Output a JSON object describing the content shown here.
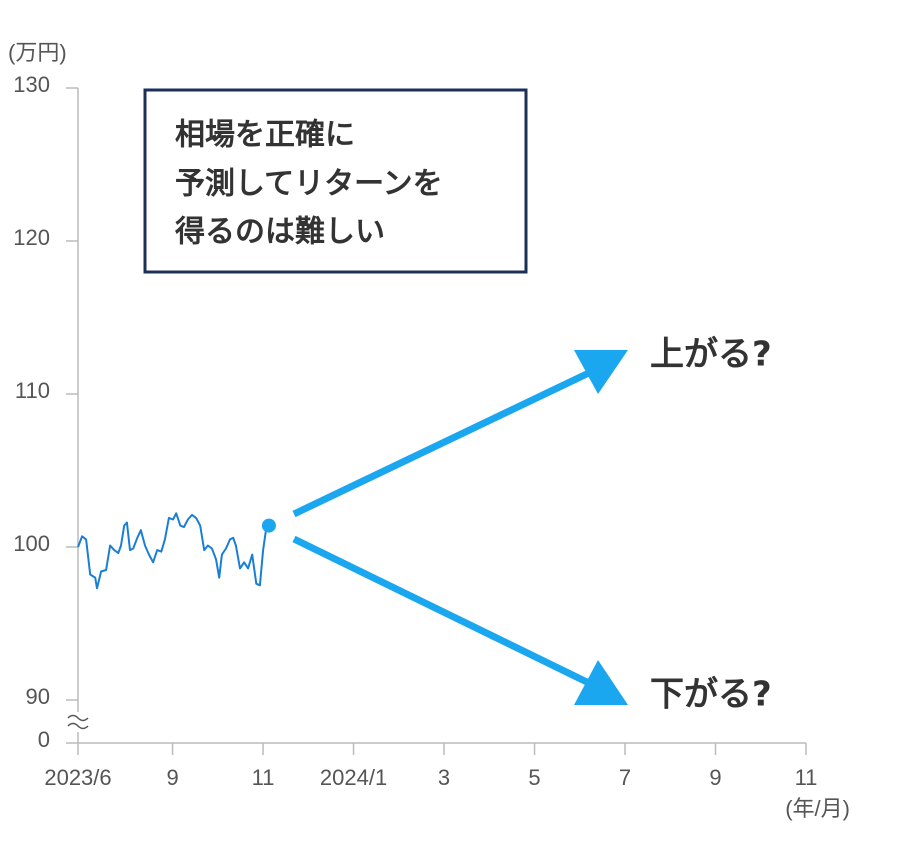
{
  "chart_data": {
    "type": "line",
    "y_unit": "(万円)",
    "x_unit": "(年/月)",
    "note_lines": [
      "相場を正確に",
      "予測してリターンを",
      "得るのは難しい"
    ],
    "up_label": "上がる?",
    "down_label": "下がる?",
    "axis_break": true,
    "ylim": [
      90,
      130
    ],
    "yticks": [
      0,
      90,
      100,
      110,
      120,
      130
    ],
    "xlim": [
      6.91,
      23
    ],
    "xticks": [
      {
        "value": 6.91,
        "label": "2023/6"
      },
      {
        "value": 9,
        "label": "9"
      },
      {
        "value": 11,
        "label": "11"
      },
      {
        "value": 13,
        "label": "2024/1"
      },
      {
        "value": 15,
        "label": "3"
      },
      {
        "value": 17,
        "label": "5"
      },
      {
        "value": 19,
        "label": "7"
      },
      {
        "value": 21,
        "label": "9"
      },
      {
        "value": 23,
        "label": "11"
      }
    ],
    "series": [
      {
        "color": "#1a7fd4",
        "x": [
          6.91,
          7.0,
          7.09,
          7.18,
          7.29,
          7.33,
          7.42,
          7.53,
          7.62,
          7.71,
          7.8,
          7.86,
          7.93,
          7.99,
          8.06,
          8.13,
          8.22,
          8.3,
          8.39,
          8.48,
          8.57,
          8.66,
          8.75,
          8.83,
          8.92,
          9.01,
          9.08,
          9.17,
          9.25,
          9.34,
          9.43,
          9.52,
          9.61,
          9.7,
          9.78,
          9.87,
          9.96,
          10.03,
          10.09,
          10.18,
          10.27,
          10.34,
          10.4,
          10.49,
          10.58,
          10.67,
          10.76,
          10.85,
          10.93,
          11.0,
          11.07,
          11.13
        ],
        "values": [
          100,
          100.7,
          100.5,
          98.2,
          98.0,
          97.3,
          98.4,
          98.5,
          100.1,
          99.8,
          99.6,
          100.1,
          101.4,
          101.6,
          99.8,
          99.9,
          100.6,
          101.1,
          100.1,
          99.5,
          99.0,
          99.8,
          99.7,
          100.5,
          101.9,
          101.8,
          102.2,
          101.4,
          101.3,
          101.8,
          102.1,
          101.9,
          101.4,
          99.8,
          100.1,
          99.9,
          99.2,
          98.0,
          99.5,
          99.9,
          100.5,
          100.6,
          100.1,
          98.6,
          99.0,
          98.6,
          99.5,
          97.6,
          97.5,
          99.8,
          101.2,
          101.4
        ]
      }
    ],
    "end_marker_color": "#1aa7f0",
    "arrow_color": "#1aa7f0"
  }
}
